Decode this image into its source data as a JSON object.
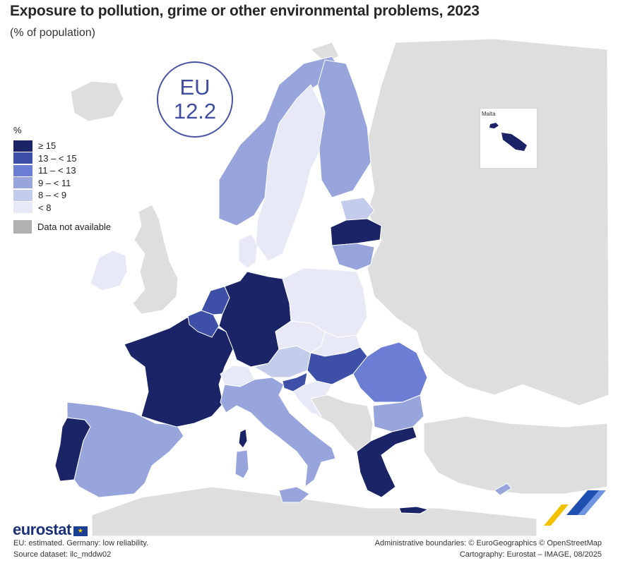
{
  "title": "Exposure to pollution, grime or other environmental problems, 2023",
  "subtitle": "(% of population)",
  "eu_badge": {
    "label": "EU",
    "value": "12.2"
  },
  "legend": {
    "unit": "%",
    "classes": [
      {
        "label": "≥ 15",
        "color": "#1a2466"
      },
      {
        "label": "13 – < 15",
        "color": "#3d4fa6"
      },
      {
        "label": "11 – < 13",
        "color": "#6b7ed3"
      },
      {
        "label": "9 – < 11",
        "color": "#97a5dc"
      },
      {
        "label": "8 – < 9",
        "color": "#c4cceb"
      },
      {
        "label": "< 8",
        "color": "#e7eaf6"
      }
    ],
    "not_available": {
      "label": "Data not available",
      "color": "#b1b1b1"
    }
  },
  "inset": {
    "label": "Malta"
  },
  "countries": [
    {
      "name": "Portugal",
      "class": "≥ 15"
    },
    {
      "name": "France",
      "class": "≥ 15"
    },
    {
      "name": "Germany",
      "class": "≥ 15"
    },
    {
      "name": "Latvia",
      "class": "≥ 15"
    },
    {
      "name": "Greece",
      "class": "≥ 15"
    },
    {
      "name": "Malta",
      "class": "≥ 15"
    },
    {
      "name": "Netherlands",
      "class": "13 – < 15"
    },
    {
      "name": "Belgium",
      "class": "13 – < 15"
    },
    {
      "name": "Hungary",
      "class": "13 – < 15"
    },
    {
      "name": "Slovenia",
      "class": "13 – < 15"
    },
    {
      "name": "Romania",
      "class": "11 – < 13"
    },
    {
      "name": "Spain",
      "class": "9 – < 11"
    },
    {
      "name": "Italy",
      "class": "9 – < 11"
    },
    {
      "name": "Norway",
      "class": "9 – < 11"
    },
    {
      "name": "Finland",
      "class": "9 – < 11"
    },
    {
      "name": "Lithuania",
      "class": "9 – < 11"
    },
    {
      "name": "Bulgaria",
      "class": "9 – < 11"
    },
    {
      "name": "Cyprus",
      "class": "9 – < 11"
    },
    {
      "name": "Austria",
      "class": "8 – < 9"
    },
    {
      "name": "Estonia",
      "class": "8 – < 9"
    },
    {
      "name": "Sweden",
      "class": "< 8"
    },
    {
      "name": "Ireland",
      "class": "< 8"
    },
    {
      "name": "Poland",
      "class": "< 8"
    },
    {
      "name": "Denmark",
      "class": "< 8"
    },
    {
      "name": "Czechia",
      "class": "< 8"
    },
    {
      "name": "Slovakia",
      "class": "< 8"
    },
    {
      "name": "Switzerland",
      "class": "< 8"
    },
    {
      "name": "Croatia",
      "class": "< 8"
    }
  ],
  "branding": {
    "logo_text": "eurostat"
  },
  "footnotes": {
    "note": "EU: estimated. Germany: low reliability.",
    "source": "Source dataset: ilc_mddw02",
    "boundaries": "Administrative boundaries: © EuroGeographics © OpenStreetMap",
    "cartography": "Cartography: Eurostat – IMAGE, 08/2025"
  }
}
